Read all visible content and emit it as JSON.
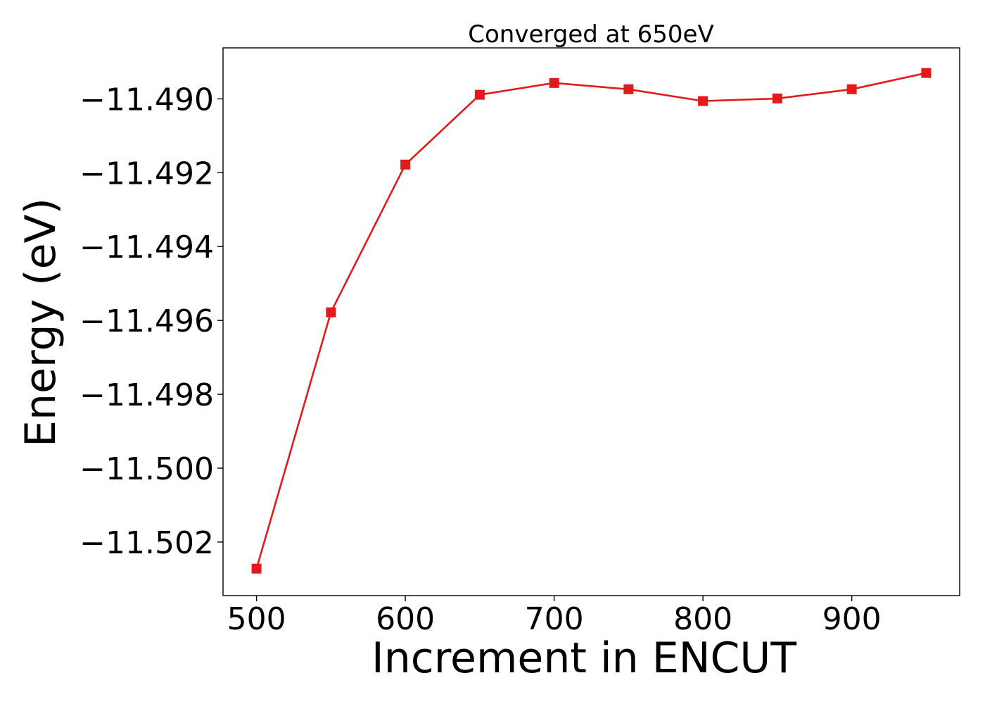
{
  "chart_data": {
    "type": "line",
    "title": "Converged at 650eV",
    "xlabel": "Increment in ENCUT",
    "ylabel": "Energy (eV)",
    "x": [
      500,
      550,
      600,
      650,
      700,
      750,
      800,
      850,
      900,
      950
    ],
    "series": [
      {
        "values": [
          -11.50272,
          -11.49578,
          -11.49178,
          -11.48989,
          -11.48957,
          -11.48974,
          -11.49006,
          -11.48999,
          -11.48974,
          -11.4893
        ],
        "color": "#e31a1c",
        "marker": "square"
      }
    ],
    "xticks": [
      500,
      600,
      700,
      800,
      900
    ],
    "xtick_labels": [
      "500",
      "600",
      "700",
      "800",
      "900"
    ],
    "yticks": [
      -11.502,
      -11.5,
      -11.498,
      -11.496,
      -11.494,
      -11.492,
      -11.49
    ],
    "ytick_labels": [
      "−11.502",
      "−11.500",
      "−11.498",
      "−11.496",
      "−11.494",
      "−11.492",
      "−11.490"
    ],
    "xlim": [
      477.5,
      972.5
    ],
    "ylim": [
      -11.50345,
      -11.48862
    ],
    "grid": false,
    "legend": false
  }
}
